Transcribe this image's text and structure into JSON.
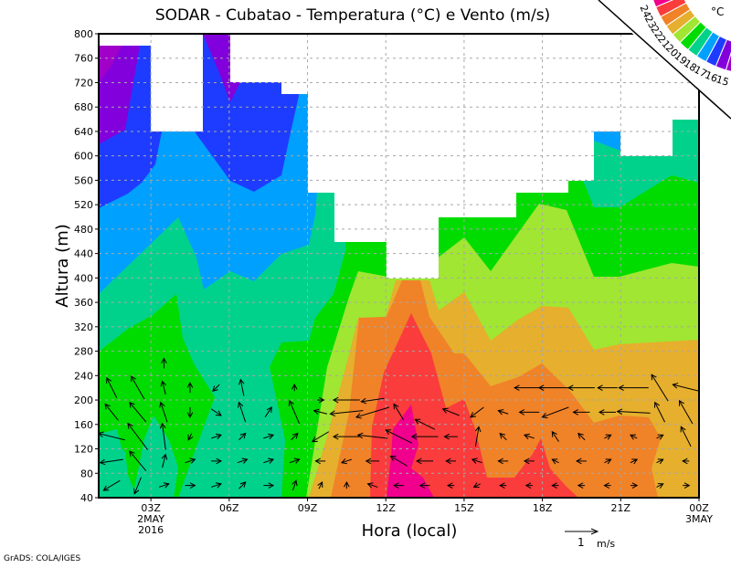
{
  "chart_data": {
    "type": "heatmap",
    "title": "SODAR - Cubatao - Temperatura (°C) e Vento (m/s)",
    "xlabel": "Hora (local)",
    "ylabel": "Altura (m)",
    "x_ticks": [
      {
        "hour": 3,
        "label": "03Z",
        "sub1": "2MAY",
        "sub2": "2016"
      },
      {
        "hour": 6,
        "label": "06Z"
      },
      {
        "hour": 9,
        "label": "09Z"
      },
      {
        "hour": 12,
        "label": "12Z"
      },
      {
        "hour": 15,
        "label": "15Z"
      },
      {
        "hour": 18,
        "label": "18Z"
      },
      {
        "hour": 21,
        "label": "21Z"
      },
      {
        "hour": 24,
        "label": "00Z",
        "sub1": "3MAY"
      }
    ],
    "xlim_hours": [
      1,
      24
    ],
    "ylim": [
      40,
      800
    ],
    "y_ticks": [
      40,
      80,
      120,
      160,
      200,
      240,
      280,
      320,
      360,
      400,
      440,
      480,
      520,
      560,
      600,
      640,
      680,
      720,
      760,
      800
    ],
    "grid": true,
    "colorbar": {
      "unit": "°C",
      "levels": [
        15,
        16,
        17,
        18,
        19,
        20,
        21,
        22,
        23,
        24
      ],
      "colors": [
        "#a000c8",
        "#8200dc",
        "#1e3cff",
        "#00a0ff",
        "#00d28c",
        "#00dc00",
        "#a0e632",
        "#e6af2d",
        "#f08228",
        "#fa3c3c",
        "#f0008c"
      ],
      "placement": "top-right"
    },
    "field_colors": {
      "lt15": "#a000c8",
      "15_16": "#8200dc",
      "16_17": "#1e3cff",
      "17_18": "#00a0ff",
      "18_19": "#00d28c",
      "19_20": "#00dc00",
      "20_21": "#a0e632",
      "21_22": "#e6af2d",
      "22_23": "#f08228",
      "23_24": "#fa3c3c",
      "gt24": "#f0008c"
    },
    "wind_reference": {
      "value": 1,
      "label": "1",
      "unit": "m/s"
    },
    "wind_vectors_hour_height_u_v": [
      [
        1.5,
        60,
        -0.5,
        -0.3
      ],
      [
        1.5,
        100,
        -0.7,
        -0.1
      ],
      [
        1.5,
        140,
        -0.8,
        0.2
      ],
      [
        1.5,
        180,
        -0.4,
        0.5
      ],
      [
        1.5,
        220,
        -0.3,
        0.6
      ],
      [
        2.5,
        60,
        -0.2,
        -0.5
      ],
      [
        2.5,
        100,
        -0.5,
        0.6
      ],
      [
        2.5,
        140,
        -0.6,
        0.8
      ],
      [
        2.5,
        180,
        -0.5,
        0.6
      ],
      [
        2.5,
        220,
        -0.4,
        0.7
      ],
      [
        3.5,
        60,
        0.3,
        0.1
      ],
      [
        3.5,
        100,
        0.1,
        0.4
      ],
      [
        3.5,
        140,
        -0.1,
        0.8
      ],
      [
        3.5,
        180,
        -0.2,
        0.6
      ],
      [
        3.5,
        220,
        -0.1,
        0.4
      ],
      [
        3.5,
        260,
        0,
        0.3
      ],
      [
        4.5,
        60,
        0.3,
        0
      ],
      [
        4.5,
        100,
        0.3,
        0.1
      ],
      [
        4.5,
        140,
        -0.1,
        -0.2
      ],
      [
        4.5,
        180,
        0,
        -0.3
      ],
      [
        4.5,
        220,
        0,
        0.3
      ],
      [
        5.5,
        60,
        0.3,
        0.1
      ],
      [
        5.5,
        100,
        0.3,
        0
      ],
      [
        5.5,
        140,
        0.3,
        0.1
      ],
      [
        5.5,
        180,
        0.3,
        -0.2
      ],
      [
        5.5,
        220,
        -0.2,
        -0.2
      ],
      [
        6.5,
        60,
        0.2,
        0.2
      ],
      [
        6.5,
        100,
        0.3,
        0.1
      ],
      [
        6.5,
        140,
        0.2,
        0.2
      ],
      [
        6.5,
        180,
        -0.2,
        0.6
      ],
      [
        6.5,
        220,
        -0.1,
        0.5
      ],
      [
        7.5,
        60,
        0.3,
        0
      ],
      [
        7.5,
        100,
        0.3,
        0.1
      ],
      [
        7.5,
        140,
        0.3,
        0.1
      ],
      [
        7.5,
        180,
        0.2,
        0.3
      ],
      [
        8.5,
        60,
        0.1,
        0.3
      ],
      [
        8.5,
        100,
        0.3,
        0.1
      ],
      [
        8.5,
        140,
        0.2,
        0.2
      ],
      [
        8.5,
        180,
        -0.3,
        0.7
      ],
      [
        8.5,
        220,
        0,
        0.2
      ],
      [
        9.5,
        60,
        0.1,
        0.2
      ],
      [
        9.5,
        100,
        -0.3,
        0
      ],
      [
        9.5,
        140,
        -0.5,
        -0.3
      ],
      [
        9.5,
        180,
        -0.4,
        0.1
      ],
      [
        9.5,
        200,
        0.2,
        0
      ],
      [
        10.5,
        60,
        0,
        0.2
      ],
      [
        10.5,
        100,
        -0.3,
        -0.1
      ],
      [
        10.5,
        140,
        -0.8,
        0
      ],
      [
        10.5,
        180,
        -1.0,
        -0.1
      ],
      [
        10.5,
        200,
        -0.8,
        0
      ],
      [
        11.5,
        60,
        -0.3,
        0.1
      ],
      [
        11.5,
        100,
        -0.4,
        0
      ],
      [
        11.5,
        140,
        -0.9,
        0.1
      ],
      [
        11.5,
        180,
        -1.0,
        -0.3
      ],
      [
        11.5,
        200,
        -0.7,
        -0.1
      ],
      [
        12.5,
        60,
        -0.3,
        0
      ],
      [
        12.5,
        100,
        -0.5,
        0.3
      ],
      [
        12.5,
        140,
        -0.8,
        0.4
      ],
      [
        12.5,
        180,
        -0.3,
        0.5
      ],
      [
        13.5,
        60,
        -0.3,
        0
      ],
      [
        13.5,
        100,
        -0.5,
        0
      ],
      [
        13.5,
        140,
        -0.8,
        0
      ],
      [
        13.5,
        160,
        -0.6,
        0.3
      ],
      [
        14.5,
        60,
        -0.2,
        0
      ],
      [
        14.5,
        100,
        -0.3,
        0
      ],
      [
        14.5,
        140,
        -0.4,
        0
      ],
      [
        14.5,
        180,
        -0.5,
        0.2
      ],
      [
        15.5,
        60,
        -0.2,
        -0.1
      ],
      [
        15.5,
        100,
        -0.3,
        0.1
      ],
      [
        15.5,
        140,
        0.1,
        0.6
      ],
      [
        15.5,
        180,
        -0.4,
        -0.3
      ],
      [
        16.5,
        60,
        -0.2,
        0
      ],
      [
        16.5,
        100,
        -0.3,
        0
      ],
      [
        16.5,
        140,
        -0.2,
        0.2
      ],
      [
        16.5,
        180,
        -0.3,
        0.1
      ],
      [
        17.5,
        60,
        -0.2,
        0
      ],
      [
        17.5,
        100,
        -0.3,
        0
      ],
      [
        17.5,
        140,
        -0.3,
        0.1
      ],
      [
        17.5,
        180,
        -0.6,
        0
      ],
      [
        17.5,
        220,
        -0.9,
        0
      ],
      [
        18.5,
        60,
        -0.2,
        0
      ],
      [
        18.5,
        100,
        -0.2,
        0.1
      ],
      [
        18.5,
        140,
        -0.2,
        0.3
      ],
      [
        18.5,
        180,
        -0.8,
        -0.3
      ],
      [
        18.5,
        220,
        -1.0,
        0
      ],
      [
        19.5,
        60,
        -0.2,
        0
      ],
      [
        19.5,
        100,
        -0.3,
        0
      ],
      [
        19.5,
        140,
        -0.2,
        0.2
      ],
      [
        19.5,
        180,
        -0.5,
        0
      ],
      [
        19.5,
        220,
        -0.8,
        0
      ],
      [
        20.5,
        60,
        -0.2,
        0
      ],
      [
        20.5,
        100,
        0.2,
        0.1
      ],
      [
        20.5,
        140,
        0.2,
        0.1
      ],
      [
        20.5,
        180,
        -0.5,
        0
      ],
      [
        20.5,
        220,
        -0.6,
        0
      ],
      [
        21.5,
        60,
        0.2,
        0
      ],
      [
        21.5,
        100,
        0.2,
        0.1
      ],
      [
        21.5,
        140,
        -0.2,
        0.1
      ],
      [
        21.5,
        180,
        -1.0,
        0.05
      ],
      [
        21.5,
        220,
        -0.9,
        0
      ],
      [
        22.5,
        60,
        0.2,
        0.1
      ],
      [
        22.5,
        100,
        0.2,
        0.1
      ],
      [
        22.5,
        140,
        0.2,
        0.1
      ],
      [
        22.5,
        180,
        -0.3,
        0.6
      ],
      [
        22.5,
        220,
        -0.5,
        0.8
      ],
      [
        23.5,
        60,
        0.2,
        0
      ],
      [
        23.5,
        100,
        -0.2,
        0
      ],
      [
        23.5,
        140,
        -0.3,
        0.6
      ],
      [
        23.5,
        180,
        -0.4,
        0.7
      ],
      [
        23.5,
        220,
        -0.8,
        0.2
      ]
    ]
  },
  "footer": {
    "credit": "GrADS: COLA/IGES"
  }
}
